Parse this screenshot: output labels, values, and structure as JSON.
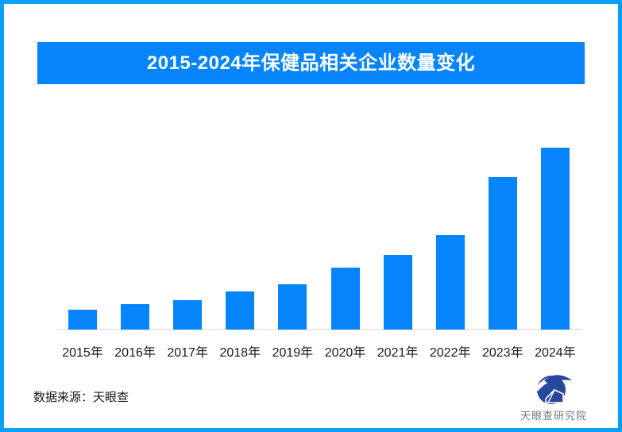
{
  "window": {
    "background": "#ffffff",
    "frame_border_color": "#09a0f8"
  },
  "title_banner": {
    "text": "2015-2024年保健品相关企业数量变化",
    "background": "#0584fc",
    "text_color": "#ffffff"
  },
  "chart_data": {
    "type": "bar",
    "title": "2015-2024年保健品相关企业数量变化",
    "categories": [
      "2015年",
      "2016年",
      "2017年",
      "2018年",
      "2019年",
      "2020年",
      "2021年",
      "2022年",
      "2023年",
      "2024年"
    ],
    "values": [
      11,
      14,
      16,
      21,
      25,
      34,
      41,
      52,
      84,
      100
    ],
    "values_unit": "relative height, 2024 bar = 100 (no numeric y-axis labels shown in chart)",
    "xlabel": "",
    "ylabel": "",
    "ylim": [
      0,
      100
    ],
    "grid": false,
    "legend": "none",
    "bar_color": "#0584fc",
    "axis_line_color": "#e8e8e8",
    "tick_label_color": "#1a1a1a"
  },
  "footer": {
    "source_label": "数据来源：天眼查"
  },
  "logo": {
    "label": "天眼查研究院",
    "label_color": "#6e7a85",
    "mark_color": "#27479f"
  }
}
